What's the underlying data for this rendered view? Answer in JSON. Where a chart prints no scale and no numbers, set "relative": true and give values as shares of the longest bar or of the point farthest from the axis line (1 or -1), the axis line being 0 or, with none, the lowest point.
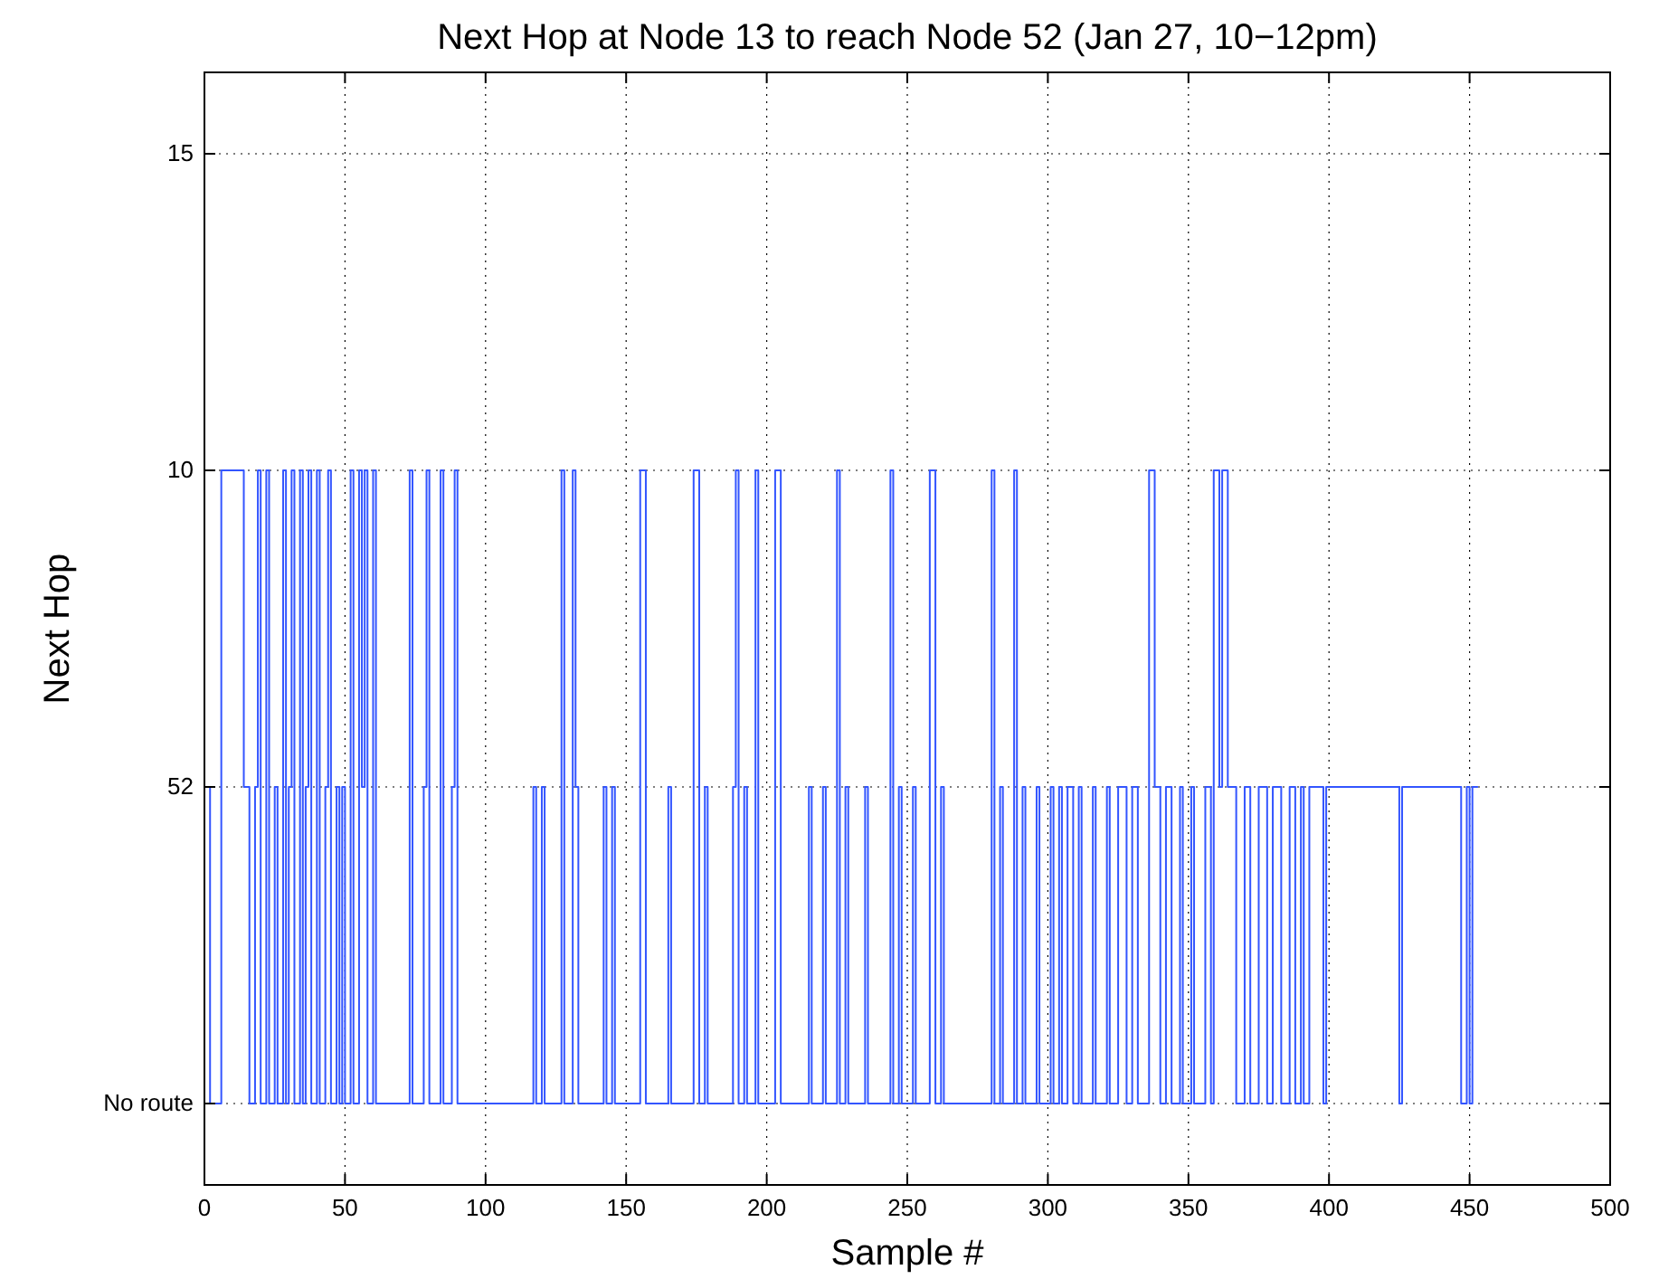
{
  "chart_data": {
    "type": "step",
    "title": "Next Hop at Node 13 to reach Node 52 (Jan 27, 10−12pm)",
    "xlabel": "Sample #",
    "ylabel": "Next Hop",
    "relative": true,
    "annotations": [
      "No route",
      "52",
      "10",
      "15"
    ],
    "x": [
      0,
      2,
      6,
      14,
      16,
      18,
      19,
      20,
      22,
      23,
      25,
      26,
      28,
      29,
      30,
      31,
      32,
      34,
      35,
      36,
      37,
      38,
      40,
      41,
      43,
      44,
      45,
      47,
      48,
      49,
      50,
      52,
      53,
      55,
      56,
      57,
      58,
      60,
      61,
      73,
      74,
      78,
      79,
      80,
      84,
      85,
      88,
      89,
      90,
      117,
      118,
      120,
      121,
      127,
      128,
      131,
      132,
      133,
      142,
      143,
      145,
      146,
      155,
      157,
      165,
      166,
      174,
      176,
      178,
      179,
      188,
      189,
      190,
      192,
      193,
      196,
      197,
      203,
      205,
      215,
      216,
      220,
      221,
      225,
      226,
      228,
      229,
      235,
      236,
      244,
      245,
      247,
      248,
      252,
      253,
      258,
      260,
      262,
      263,
      280,
      281,
      283,
      284,
      288,
      289,
      291,
      292,
      296,
      297,
      301,
      302,
      304,
      305,
      307,
      309,
      311,
      312,
      316,
      317,
      321,
      322,
      325,
      328,
      330,
      332,
      336,
      338,
      340,
      342,
      344,
      347,
      348,
      351,
      352,
      356,
      358,
      359,
      361,
      362,
      364,
      367,
      370,
      372,
      375,
      378,
      380,
      383,
      386,
      388,
      390,
      391,
      393,
      398,
      399,
      425,
      426,
      447,
      449,
      450,
      451,
      453
    ],
    "series": [
      {
        "color": "#3355ff",
        "values": [
          0.5,
          0,
          1,
          0.5,
          0,
          0.5,
          1,
          0,
          1,
          0,
          0.5,
          0,
          1,
          0,
          0.5,
          1,
          0,
          1,
          0,
          0.5,
          1,
          0,
          1,
          0,
          0.5,
          1,
          0,
          0.5,
          0,
          0.5,
          0,
          1,
          0,
          1,
          0.5,
          1,
          0,
          1,
          0,
          1,
          0,
          0.5,
          1,
          0,
          1,
          0,
          0.5,
          1,
          0,
          0.5,
          0,
          0.5,
          0,
          1,
          0,
          1,
          0.5,
          0,
          0.5,
          0,
          0.5,
          0,
          1,
          0,
          0.5,
          0,
          1,
          0,
          0.5,
          0,
          0.5,
          1,
          0,
          0.5,
          0,
          1,
          0,
          1,
          0,
          0.5,
          0,
          0.5,
          0,
          1,
          0,
          0.5,
          0,
          0.5,
          0,
          1,
          0,
          0.5,
          0,
          0.5,
          0,
          1,
          0,
          0.5,
          0,
          1,
          0,
          0.5,
          0,
          1,
          0,
          0.5,
          0,
          0.5,
          0,
          0.5,
          0,
          0.5,
          0,
          0.5,
          0,
          0.5,
          0,
          0.5,
          0,
          0.5,
          0,
          0.5,
          0,
          0.5,
          0,
          1,
          0.5,
          0,
          0.5,
          0,
          0.5,
          0,
          0.5,
          0,
          0.5,
          0,
          1,
          0.5,
          1,
          0.5,
          0,
          0.5,
          0,
          0.5,
          0,
          0.5,
          0,
          0.5,
          0,
          0.5,
          0,
          0.5,
          0,
          0.5,
          0,
          0.5,
          0,
          0.5,
          0,
          0.5,
          0.5
        ]
      }
    ],
    "xlim": [
      0,
      500
    ],
    "xticks": [
      0,
      50,
      100,
      150,
      200,
      250,
      300,
      350,
      400,
      450,
      500
    ],
    "grid": true,
    "line_style": "solid"
  }
}
